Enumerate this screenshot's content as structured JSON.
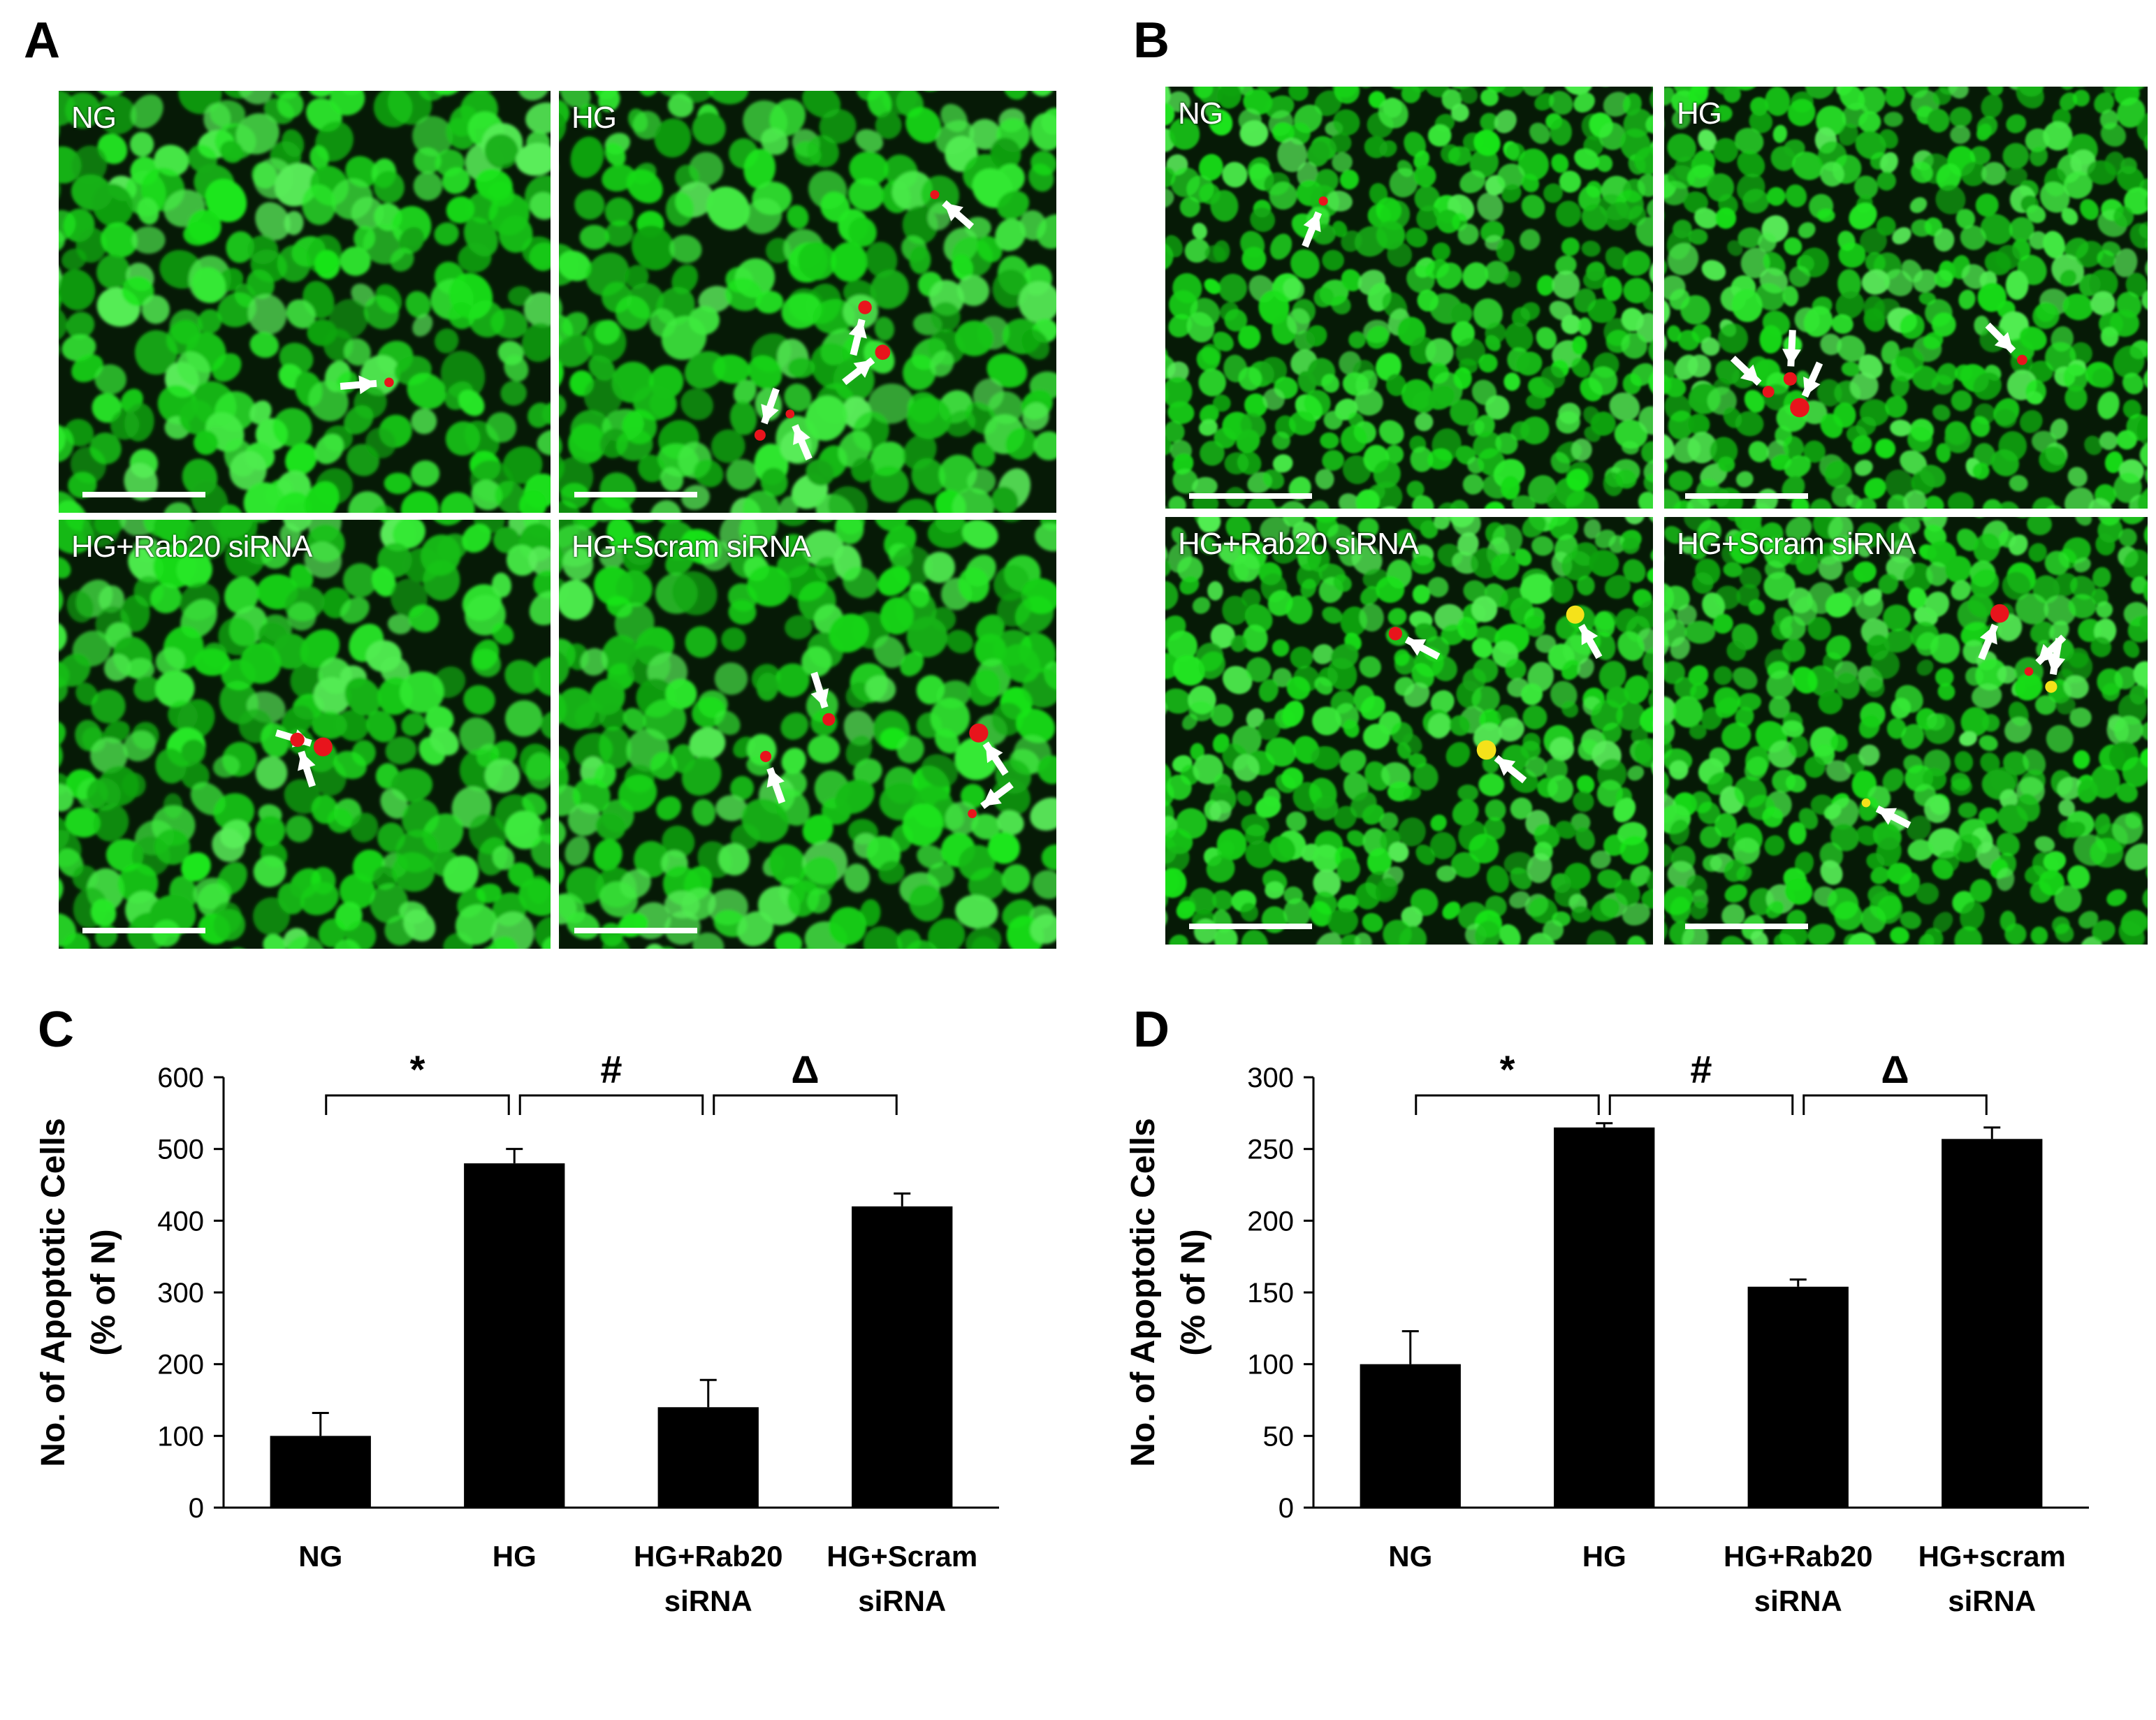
{
  "panels": {
    "A": {
      "letter": "A",
      "images": [
        {
          "label": "NG",
          "arrows": 1
        },
        {
          "label": "HG",
          "arrows": 5
        },
        {
          "label": "HG+Rab20 siRNA",
          "arrows": 2
        },
        {
          "label": "HG+Scram siRNA",
          "arrows": 4
        }
      ]
    },
    "B": {
      "letter": "B",
      "images": [
        {
          "label": "NG",
          "arrows": 1
        },
        {
          "label": "HG",
          "arrows": 4
        },
        {
          "label": "HG+Rab20 siRNA",
          "arrows": 3
        },
        {
          "label": "HG+Scram siRNA",
          "arrows": 4
        }
      ]
    },
    "C": {
      "letter": "C"
    },
    "D": {
      "letter": "D"
    }
  },
  "colors": {
    "cell_green": "#2fe02f",
    "apoptotic_red": "#e8141c",
    "apoptotic_yellow": "#f5e21a",
    "bar": "#000000"
  },
  "chart_data": [
    {
      "panel": "C",
      "type": "bar",
      "categories": [
        [
          "NG"
        ],
        [
          "HG"
        ],
        [
          "HG+Rab20",
          "siRNA"
        ],
        [
          "HG+Scram",
          "siRNA"
        ]
      ],
      "values": [
        100,
        480,
        140,
        420
      ],
      "errors": [
        32,
        20,
        38,
        18
      ],
      "ylabel": [
        "No. of Apoptotic Cells",
        "(% of N)"
      ],
      "ylim": [
        0,
        600
      ],
      "yticks": [
        0,
        100,
        200,
        300,
        400,
        500,
        600
      ],
      "significance": [
        {
          "symbol": "*",
          "from": 0,
          "to": 1
        },
        {
          "symbol": "#",
          "from": 1,
          "to": 2
        },
        {
          "symbol": "Δ",
          "from": 2,
          "to": 3
        }
      ]
    },
    {
      "panel": "D",
      "type": "bar",
      "categories": [
        [
          "NG"
        ],
        [
          "HG"
        ],
        [
          "HG+Rab20",
          "siRNA"
        ],
        [
          "HG+scram",
          "siRNA"
        ]
      ],
      "values": [
        100,
        265,
        154,
        257
      ],
      "errors": [
        23,
        3,
        5,
        8
      ],
      "ylabel": [
        "No. of Apoptotic Cells",
        "(% of N)"
      ],
      "ylim": [
        0,
        300
      ],
      "yticks": [
        0,
        50,
        100,
        150,
        200,
        250,
        300
      ],
      "significance": [
        {
          "symbol": "*",
          "from": 0,
          "to": 1
        },
        {
          "symbol": "#",
          "from": 1,
          "to": 2
        },
        {
          "symbol": "Δ",
          "from": 2,
          "to": 3
        }
      ]
    }
  ]
}
